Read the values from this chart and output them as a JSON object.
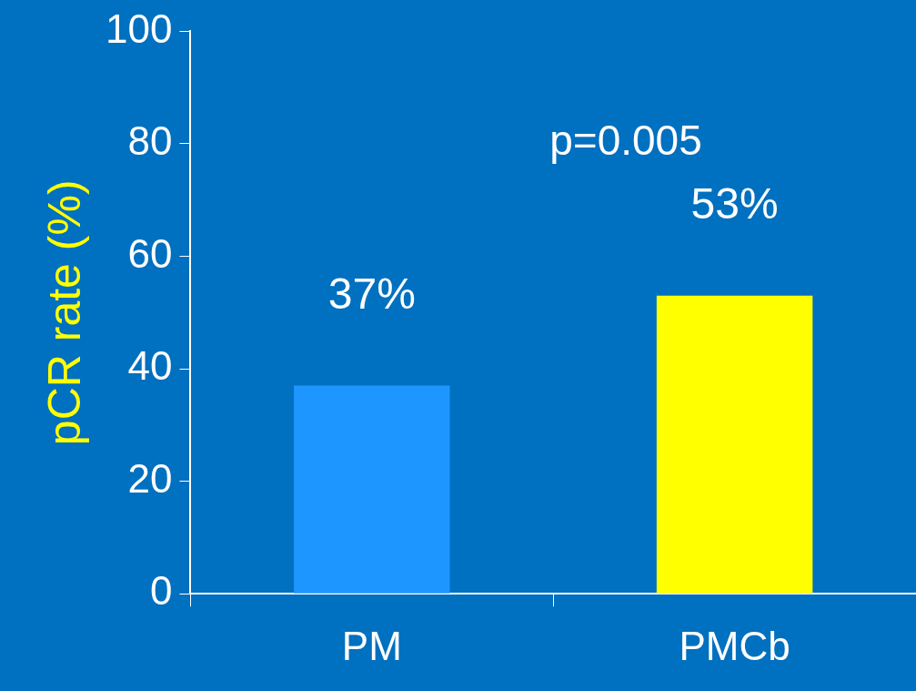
{
  "chart_data": {
    "type": "bar",
    "categories": [
      "PM",
      "PMCb"
    ],
    "values": [
      37,
      53
    ],
    "colors": [
      "#1e96ff",
      "#ffff00"
    ],
    "value_labels": [
      "37%",
      "53%"
    ],
    "ylabel": "pCR rate (%)",
    "ylim": [
      0,
      100
    ],
    "yticks": [
      0,
      20,
      40,
      60,
      80,
      100
    ],
    "grid": false,
    "legend": false,
    "annotations": [
      "p=0.005"
    ]
  }
}
